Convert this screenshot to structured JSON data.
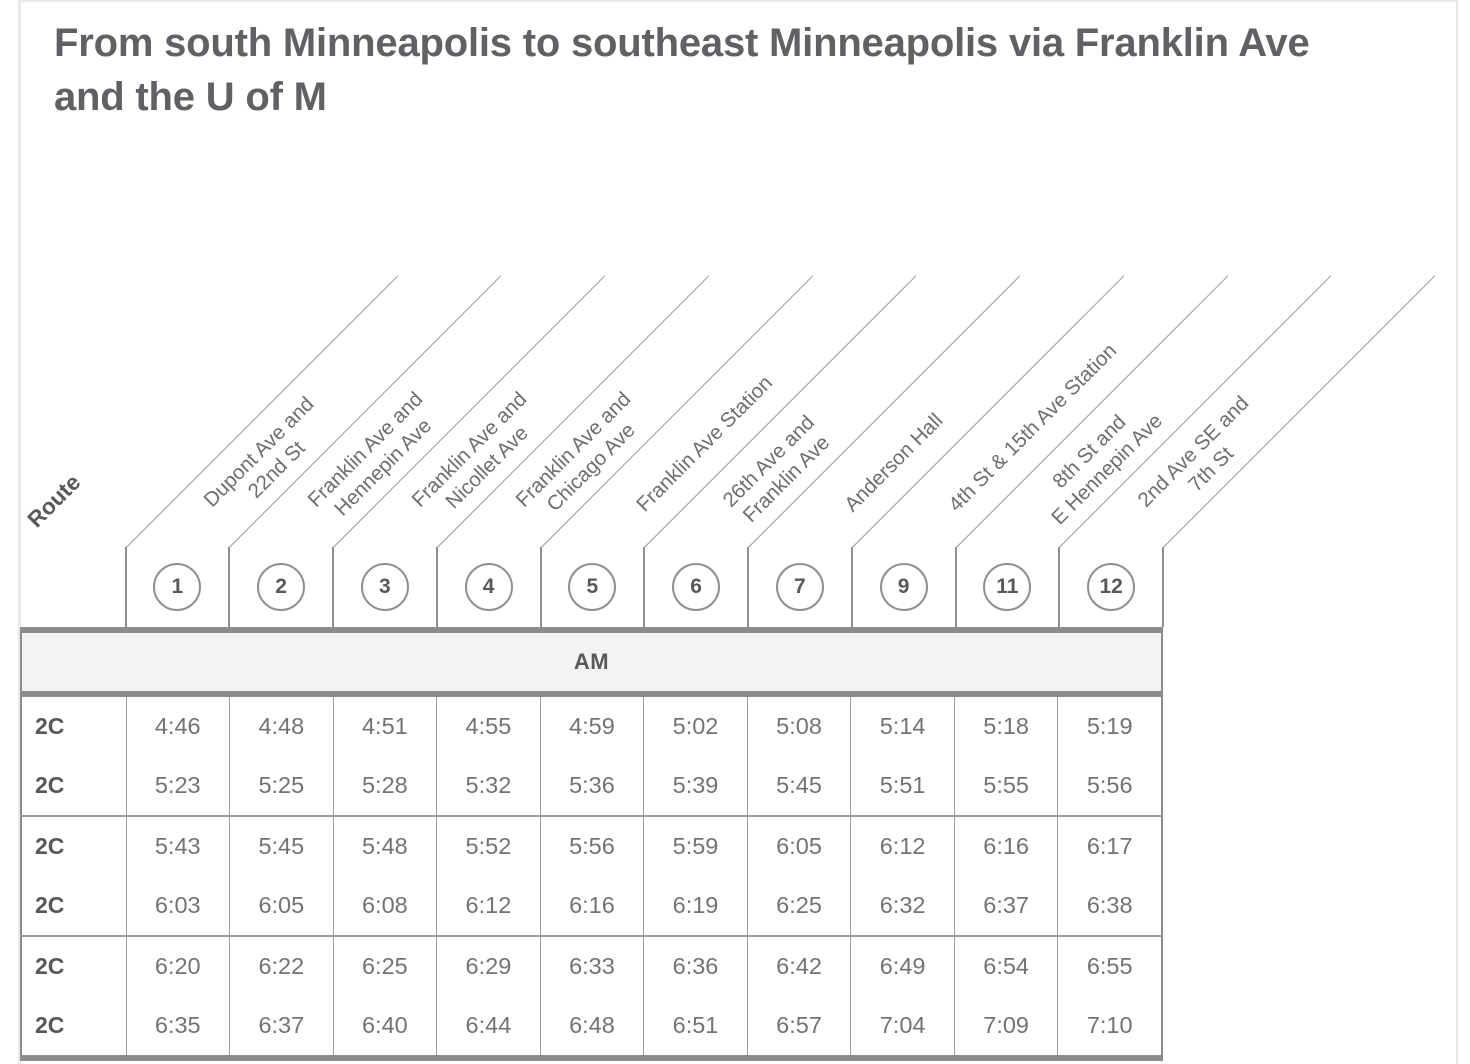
{
  "page": {
    "title": "From south Minneapolis to southeast Minneapolis via Franklin Ave and the U of M"
  },
  "table": {
    "route_header": "Route",
    "period_label": "AM",
    "stops": [
      {
        "number": "1",
        "name_lines": [
          "Dupont Ave and",
          "22nd St"
        ]
      },
      {
        "number": "2",
        "name_lines": [
          "Franklin Ave and",
          "Hennepin Ave"
        ]
      },
      {
        "number": "3",
        "name_lines": [
          "Franklin Ave and",
          "Nicollet Ave"
        ]
      },
      {
        "number": "4",
        "name_lines": [
          "Franklin Ave and",
          "Chicago Ave"
        ]
      },
      {
        "number": "5",
        "name_lines": [
          "Franklin Ave Station"
        ]
      },
      {
        "number": "6",
        "name_lines": [
          "26th Ave and",
          "Franklin Ave"
        ]
      },
      {
        "number": "7",
        "name_lines": [
          "Anderson Hall"
        ]
      },
      {
        "number": "9",
        "name_lines": [
          "4th St & 15th Ave Station"
        ]
      },
      {
        "number": "11",
        "name_lines": [
          "8th St and",
          "E Hennepin Ave"
        ]
      },
      {
        "number": "12",
        "name_lines": [
          "2nd Ave SE and",
          "7th St"
        ]
      }
    ],
    "groups": [
      {
        "rows": [
          {
            "route": "2C",
            "times": [
              "4:46",
              "4:48",
              "4:51",
              "4:55",
              "4:59",
              "5:02",
              "5:08",
              "5:14",
              "5:18",
              "5:19"
            ]
          },
          {
            "route": "2C",
            "times": [
              "5:23",
              "5:25",
              "5:28",
              "5:32",
              "5:36",
              "5:39",
              "5:45",
              "5:51",
              "5:55",
              "5:56"
            ]
          }
        ]
      },
      {
        "rows": [
          {
            "route": "2C",
            "times": [
              "5:43",
              "5:45",
              "5:48",
              "5:52",
              "5:56",
              "5:59",
              "6:05",
              "6:12",
              "6:16",
              "6:17"
            ]
          },
          {
            "route": "2C",
            "times": [
              "6:03",
              "6:05",
              "6:08",
              "6:12",
              "6:16",
              "6:19",
              "6:25",
              "6:32",
              "6:37",
              "6:38"
            ]
          }
        ]
      },
      {
        "rows": [
          {
            "route": "2C",
            "times": [
              "6:20",
              "6:22",
              "6:25",
              "6:29",
              "6:33",
              "6:36",
              "6:42",
              "6:49",
              "6:54",
              "6:55"
            ]
          },
          {
            "route": "2C",
            "times": [
              "6:35",
              "6:37",
              "6:40",
              "6:44",
              "6:48",
              "6:51",
              "6:57",
              "7:04",
              "7:09",
              "7:10"
            ]
          }
        ]
      }
    ]
  },
  "colors": {
    "heading_text": "#606164",
    "body_text": "#717376",
    "dark_text": "#58595b",
    "thick_rule": "#8b8c8e",
    "thin_rule": "#9b9c9e",
    "diagonal_line": "#97989a",
    "period_band_bg": "#f3f3f2",
    "card_border": "#e8e8e5"
  }
}
